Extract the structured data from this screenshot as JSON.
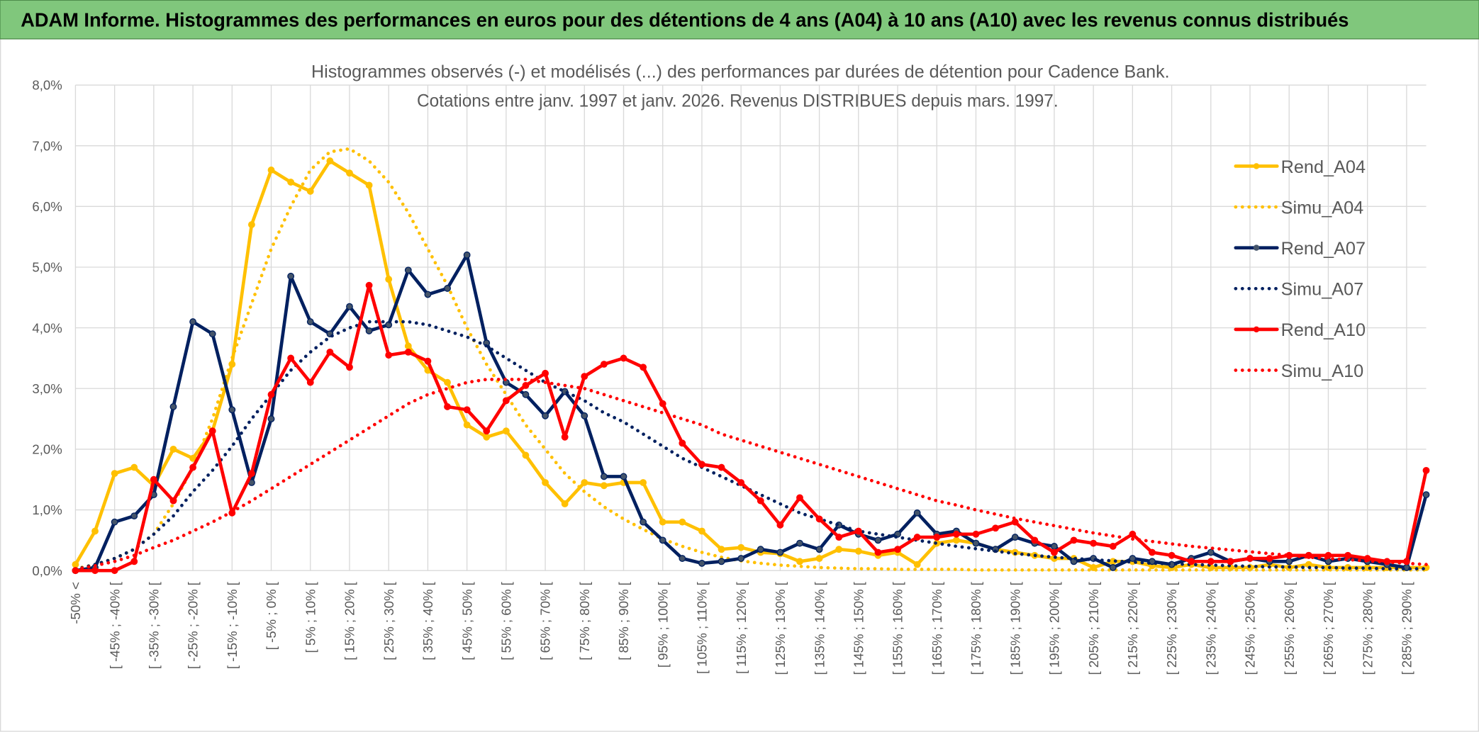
{
  "header": {
    "title": "ADAM Informe. Histogrammes des performances en euros pour des détentions de 4 ans (A04) à 10 ans (A10) avec les revenus connus distribués"
  },
  "chart_data": {
    "type": "line",
    "title": "Histogrammes observés (-) et modélisés (...) des performances par durées de détention pour Cadence Bank.",
    "subtitle": "Cotations entre janv. 1997 et janv. 2026. Revenus DISTRIBUES depuis mars. 1997.",
    "categories": [
      "-50% <",
      null,
      "[ -45% ; -40% [",
      null,
      "[ -35% ; -30% [",
      null,
      "[ -25% ; -20% [",
      null,
      "[ -15% ; -10% [",
      null,
      "[ -5% ; 0% [",
      null,
      "[ 5% ; 10% [",
      null,
      "[ 15% ; 20% [",
      null,
      "[ 25% ; 30% [",
      null,
      "[ 35% ; 40% [",
      null,
      "[ 45% ; 50% [",
      null,
      "[ 55% ; 60% [",
      null,
      "[ 65% ; 70% [",
      null,
      "[ 75% ; 80% [",
      null,
      "[ 85% ; 90% [",
      null,
      "[ 95% ; 100% [",
      null,
      "[ 105% ; 110% [",
      null,
      "[ 115% ; 120% [",
      null,
      "[ 125% ; 130% [",
      null,
      "[ 135% ; 140% [",
      null,
      "[ 145% ; 150% [",
      null,
      "[ 155% ; 160% [",
      null,
      "[ 165% ; 170% [",
      null,
      "[ 175% ; 180% [",
      null,
      "[ 185% ; 190% [",
      null,
      "[ 195% ; 200% [",
      null,
      "[ 205% ; 210% [",
      null,
      "[ 215% ; 220% [",
      null,
      "[ 225% ; 230% [",
      null,
      "[ 235% ; 240% [",
      null,
      "[ 245% ; 250% [",
      null,
      "[ 255% ; 260% [",
      null,
      "[ 265% ; 270% [",
      null,
      "[ 275% ; 280% [",
      null,
      "[ 285% ; 290% [",
      null
    ],
    "series": [
      {
        "name": "Rend_A04",
        "color": "#FFC000",
        "style": "solid",
        "markers": true,
        "values": [
          0.1,
          0.65,
          1.6,
          1.7,
          1.4,
          2.0,
          1.85,
          2.3,
          3.4,
          5.7,
          6.6,
          6.4,
          6.25,
          6.75,
          6.55,
          6.35,
          4.8,
          3.7,
          3.3,
          3.1,
          2.4,
          2.2,
          2.3,
          1.9,
          1.45,
          1.1,
          1.45,
          1.4,
          1.45,
          1.45,
          0.8,
          0.8,
          0.65,
          0.35,
          0.38,
          0.3,
          0.28,
          0.15,
          0.2,
          0.35,
          0.32,
          0.25,
          0.3,
          0.1,
          0.45,
          0.5,
          0.45,
          0.35,
          0.3,
          0.25,
          0.2,
          0.2,
          0.05,
          0.15,
          0.15,
          0.08,
          0.05,
          0.1,
          0.05,
          0.05,
          0.05,
          0.1,
          0.05,
          0.1,
          0.05,
          0.05,
          0.05,
          0.05,
          0.05,
          0.05
        ]
      },
      {
        "name": "Simu_A04",
        "color": "#FFC000",
        "style": "dotted",
        "markers": false,
        "values": [
          0.03,
          0.1,
          0.2,
          0.35,
          0.6,
          1.1,
          1.7,
          2.5,
          3.5,
          4.4,
          5.3,
          6.0,
          6.6,
          6.9,
          6.95,
          6.75,
          6.4,
          5.9,
          5.3,
          4.7,
          4.0,
          3.4,
          2.9,
          2.4,
          2.0,
          1.6,
          1.3,
          1.05,
          0.85,
          0.68,
          0.52,
          0.4,
          0.3,
          0.22,
          0.16,
          0.12,
          0.09,
          0.07,
          0.05,
          0.04,
          0.03,
          0.03,
          0.02,
          0.02,
          0.02,
          0.02,
          0.01,
          0.01,
          0.01,
          0.01,
          0.01,
          0.01,
          0.01,
          0.01,
          0.01,
          0.01,
          0.01,
          0.01,
          0.01,
          0.01,
          0.01,
          0.01,
          0.01,
          0.01,
          0.01,
          0.01,
          0.01,
          0.01,
          0.01,
          0.01
        ]
      },
      {
        "name": "Rend_A07",
        "color": "#002060",
        "style": "solid",
        "markers": true,
        "values": [
          0,
          0.05,
          0.8,
          0.9,
          1.25,
          2.7,
          4.1,
          3.9,
          2.65,
          1.45,
          2.5,
          4.85,
          4.1,
          3.9,
          4.35,
          3.95,
          4.05,
          4.95,
          4.55,
          4.65,
          5.2,
          3.75,
          3.1,
          2.9,
          2.55,
          2.95,
          2.55,
          1.55,
          1.55,
          0.8,
          0.5,
          0.2,
          0.12,
          0.15,
          0.2,
          0.35,
          0.3,
          0.45,
          0.35,
          0.75,
          0.6,
          0.5,
          0.6,
          0.95,
          0.6,
          0.65,
          0.45,
          0.35,
          0.55,
          0.45,
          0.4,
          0.15,
          0.2,
          0.05,
          0.2,
          0.15,
          0.1,
          0.2,
          0.3,
          0.15,
          0.2,
          0.15,
          0.15,
          0.25,
          0.15,
          0.2,
          0.15,
          0.1,
          0.05,
          1.25
        ]
      },
      {
        "name": "Simu_A07",
        "color": "#002060",
        "style": "dotted",
        "markers": false,
        "values": [
          0.02,
          0.1,
          0.2,
          0.35,
          0.6,
          0.9,
          1.3,
          1.65,
          2.05,
          2.5,
          2.9,
          3.3,
          3.6,
          3.85,
          4.0,
          4.1,
          4.1,
          4.1,
          4.05,
          3.95,
          3.85,
          3.7,
          3.5,
          3.3,
          3.1,
          2.95,
          2.8,
          2.6,
          2.45,
          2.25,
          2.05,
          1.85,
          1.7,
          1.55,
          1.4,
          1.25,
          1.1,
          0.95,
          0.85,
          0.75,
          0.65,
          0.6,
          0.55,
          0.5,
          0.45,
          0.4,
          0.36,
          0.32,
          0.28,
          0.25,
          0.22,
          0.2,
          0.18,
          0.16,
          0.14,
          0.12,
          0.11,
          0.1,
          0.09,
          0.08,
          0.07,
          0.06,
          0.06,
          0.05,
          0.05,
          0.04,
          0.04,
          0.03,
          0.03,
          0.03
        ]
      },
      {
        "name": "Rend_A10",
        "color": "#FF0000",
        "style": "solid",
        "markers": true,
        "values": [
          0,
          0,
          0,
          0.15,
          1.5,
          1.15,
          1.7,
          2.3,
          0.95,
          1.6,
          2.9,
          3.5,
          3.1,
          3.6,
          3.35,
          4.7,
          3.55,
          3.6,
          3.45,
          2.7,
          2.65,
          2.3,
          2.8,
          3.05,
          3.25,
          2.2,
          3.2,
          3.4,
          3.5,
          3.35,
          2.75,
          2.1,
          1.75,
          1.7,
          1.45,
          1.15,
          0.75,
          1.2,
          0.85,
          0.55,
          0.65,
          0.3,
          0.35,
          0.55,
          0.55,
          0.6,
          0.6,
          0.7,
          0.8,
          0.5,
          0.3,
          0.5,
          0.45,
          0.4,
          0.6,
          0.3,
          0.25,
          0.15,
          0.15,
          0.15,
          0.2,
          0.2,
          0.25,
          0.25,
          0.25,
          0.25,
          0.2,
          0.15,
          0.15,
          1.65
        ]
      },
      {
        "name": "Simu_A10",
        "color": "#FF0000",
        "style": "dotted",
        "markers": false,
        "values": [
          0.02,
          0.08,
          0.15,
          0.25,
          0.38,
          0.5,
          0.65,
          0.8,
          0.97,
          1.15,
          1.35,
          1.55,
          1.75,
          1.95,
          2.15,
          2.35,
          2.55,
          2.75,
          2.9,
          3.0,
          3.1,
          3.15,
          3.15,
          3.15,
          3.1,
          3.05,
          3.0,
          2.9,
          2.8,
          2.7,
          2.6,
          2.5,
          2.4,
          2.25,
          2.15,
          2.05,
          1.95,
          1.85,
          1.75,
          1.65,
          1.55,
          1.45,
          1.35,
          1.25,
          1.15,
          1.08,
          1.0,
          0.93,
          0.86,
          0.8,
          0.74,
          0.68,
          0.62,
          0.57,
          0.52,
          0.48,
          0.44,
          0.4,
          0.37,
          0.34,
          0.31,
          0.28,
          0.25,
          0.22,
          0.2,
          0.18,
          0.16,
          0.14,
          0.12,
          0.1
        ]
      }
    ],
    "ylim": [
      0,
      8
    ],
    "yticks": [
      {
        "value": 0,
        "label": "0,0%"
      },
      {
        "value": 1,
        "label": "1,0%"
      },
      {
        "value": 2,
        "label": "2,0%"
      },
      {
        "value": 3,
        "label": "3,0%"
      },
      {
        "value": 4,
        "label": "4,0%"
      },
      {
        "value": 5,
        "label": "5,0%"
      },
      {
        "value": 6,
        "label": "6,0%"
      },
      {
        "value": 7,
        "label": "7,0%"
      },
      {
        "value": 8,
        "label": "8,0%"
      }
    ],
    "grid": true,
    "legend": "right"
  }
}
